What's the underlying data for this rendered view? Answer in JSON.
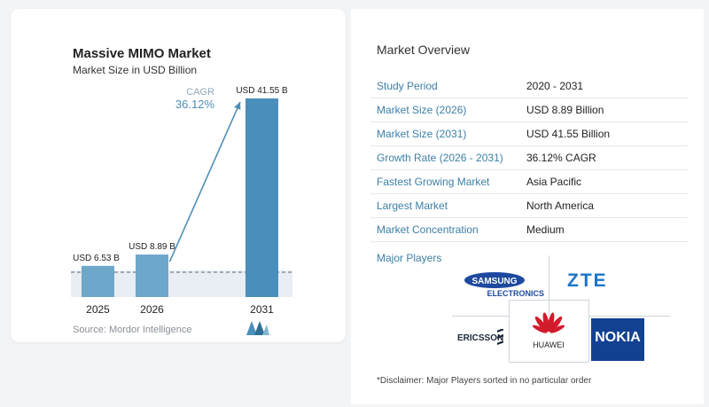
{
  "chart_data": {
    "type": "bar",
    "title": "Massive MIMO Market",
    "subtitle": "Market Size in USD Billion",
    "categories": [
      "2025",
      "2026",
      "2031"
    ],
    "values": [
      6.53,
      8.89,
      41.55
    ],
    "value_labels": [
      "USD 6.53 B",
      "USD 8.89 B",
      "USD 41.55 B"
    ],
    "cagr_label": "CAGR",
    "cagr_value": "36.12%",
    "colors": {
      "bar_light": "#6da7c9",
      "bar_dark": "#4a8fbb",
      "arrow": "#4f8fb5",
      "band": "#e8eef4"
    },
    "grid": false
  },
  "source": "Source: Mordor Intelligence",
  "overview": {
    "title": "Market Overview",
    "rows": [
      {
        "key": "Study Period",
        "value": "2020 - 2031"
      },
      {
        "key": "Market Size (2026)",
        "value": "USD 8.89 Billion"
      },
      {
        "key": "Market Size (2031)",
        "value": "USD 41.55 Billion"
      },
      {
        "key": "Growth Rate (2026 - 2031)",
        "value": "36.12% CAGR"
      },
      {
        "key": "Fastest Growing Market",
        "value": "Asia Pacific"
      },
      {
        "key": "Largest Market",
        "value": "North America"
      },
      {
        "key": "Market Concentration",
        "value": "Medium"
      }
    ],
    "players_label": "Major Players",
    "players": {
      "samsung_top": "SAMSUNG",
      "samsung_bottom": "ELECTRONICS",
      "zte": "ZTE",
      "ericsson": "ERICSSON",
      "huawei": "HUAWEI",
      "nokia": "NOKIA"
    },
    "disclaimer": "*Disclaimer: Major Players sorted in no particular order"
  }
}
